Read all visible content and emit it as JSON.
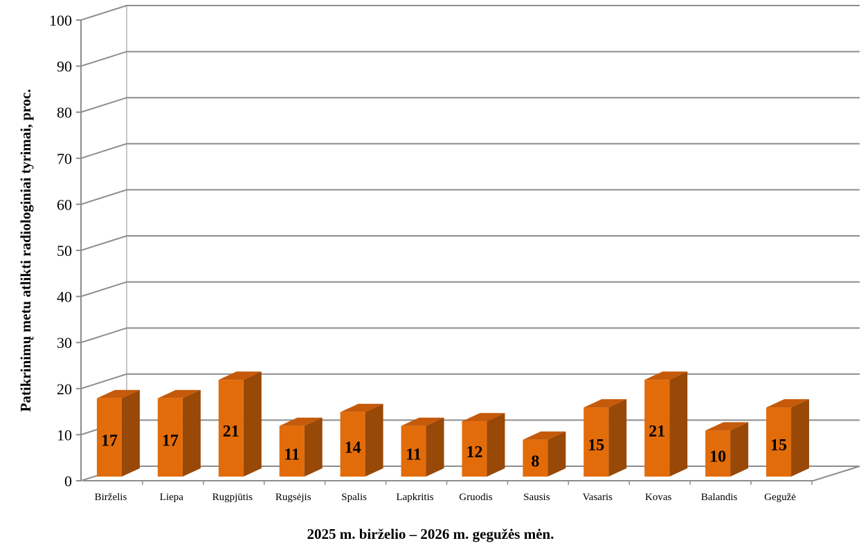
{
  "chart_data": {
    "type": "bar",
    "title": "",
    "xlabel": "2025 m. birželio – 2026 m. gegužės mėn.",
    "ylabel": "Patikrinimų metu atlikti radiologiniai tyrimai, proc.",
    "ylim": [
      0,
      100
    ],
    "yticks": [
      0,
      10,
      20,
      30,
      40,
      50,
      60,
      70,
      80,
      90,
      100
    ],
    "grid": true,
    "style": "3d-column",
    "categories": [
      "Birželis",
      "Liepa",
      "Rugpjūtis",
      "Rugsėjis",
      "Spalis",
      "Lapkritis",
      "Gruodis",
      "Sausis",
      "Vasaris",
      "Kovas",
      "Balandis",
      "Gegužė"
    ],
    "values": [
      17,
      17,
      21,
      11,
      14,
      11,
      12,
      8,
      15,
      21,
      10,
      15
    ],
    "colors": {
      "bar_front": "#e36c0a",
      "bar_side": "#984807",
      "bar_top": "#c55a0a",
      "gridline": "#8c8c8c"
    }
  }
}
